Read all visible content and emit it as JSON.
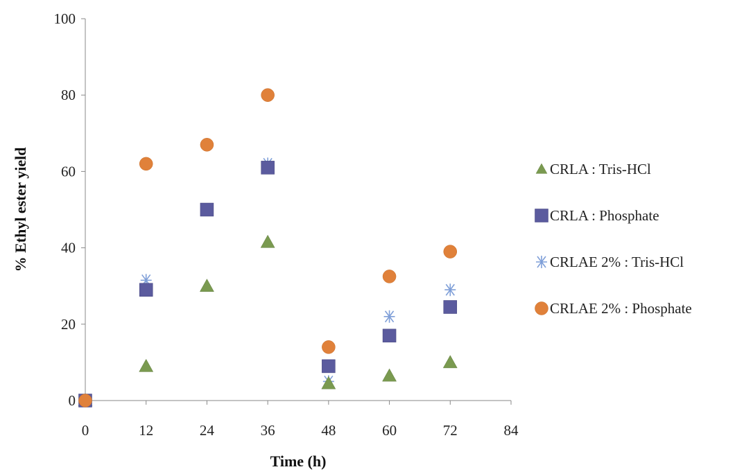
{
  "chart_data": {
    "type": "scatter",
    "xlabel": "Time (h)",
    "ylabel": "% Ethyl ester yield",
    "xlim": [
      0,
      84
    ],
    "ylim": [
      0,
      100
    ],
    "xticks": [
      "0",
      "12",
      "24",
      "36",
      "48",
      "60",
      "72",
      "84"
    ],
    "yticks": [
      "0",
      "20",
      "40",
      "60",
      "80",
      "100"
    ],
    "grid": false,
    "legend_position": "right",
    "series": [
      {
        "name": "CRLA : Tris-HCl",
        "marker": "triangle",
        "color": "#7a9a50",
        "x": [
          0,
          12,
          24,
          36,
          48,
          60,
          72
        ],
        "y": [
          0,
          9,
          30,
          41.5,
          4.5,
          6.5,
          10
        ]
      },
      {
        "name": "CRLA : Phosphate",
        "marker": "square",
        "color": "#5b5b9e",
        "x": [
          0,
          12,
          24,
          36,
          48,
          60,
          72
        ],
        "y": [
          0,
          29,
          50,
          61,
          9,
          17,
          24.5
        ]
      },
      {
        "name": "CRLAE 2% : Tris-HCl",
        "marker": "star",
        "color": "#7f9fd8",
        "x": [
          0,
          12,
          24,
          36,
          48,
          60,
          72
        ],
        "y": [
          0,
          31.5,
          50,
          62,
          5,
          22,
          29
        ]
      },
      {
        "name": "CRLAE 2% : Phosphate",
        "marker": "circle",
        "color": "#e0813a",
        "x": [
          0,
          12,
          24,
          36,
          48,
          60,
          72
        ],
        "y": [
          0,
          62,
          67,
          80,
          14,
          32.5,
          39
        ]
      }
    ]
  }
}
